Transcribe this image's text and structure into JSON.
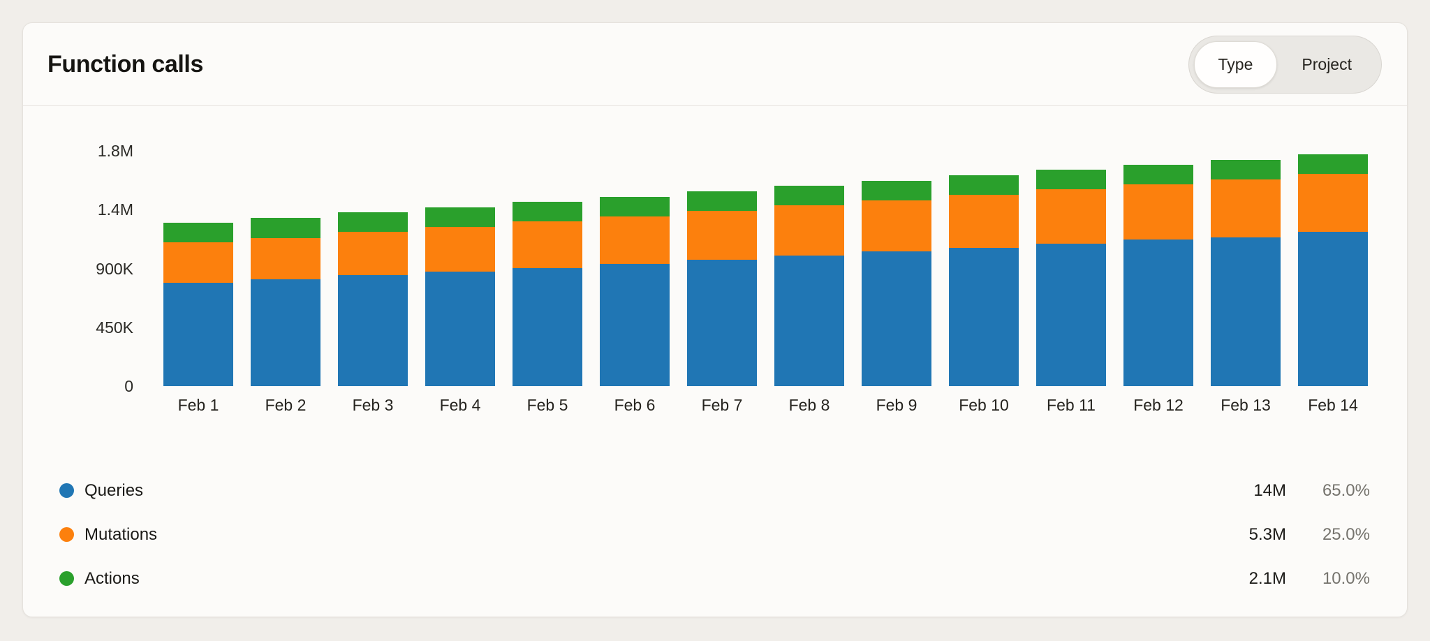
{
  "header": {
    "title": "Function calls"
  },
  "toggle": {
    "options": [
      "Type",
      "Project"
    ],
    "selected": "Type"
  },
  "chart_data": {
    "type": "stacked_bar",
    "title": "Function calls",
    "categories": [
      "Feb 1",
      "Feb 2",
      "Feb 3",
      "Feb 4",
      "Feb 5",
      "Feb 6",
      "Feb 7",
      "Feb 8",
      "Feb 9",
      "Feb 10",
      "Feb 11",
      "Feb 12",
      "Feb 13",
      "Feb 14"
    ],
    "series": [
      {
        "name": "Queries",
        "color": "#2076b4",
        "values": [
          790000,
          815000,
          850000,
          875000,
          905000,
          935000,
          965000,
          1000000,
          1030000,
          1060000,
          1090000,
          1120000,
          1140000,
          1180000
        ]
      },
      {
        "name": "Mutations",
        "color": "#fc800d",
        "values": [
          310000,
          320000,
          330000,
          345000,
          355000,
          365000,
          375000,
          385000,
          390000,
          405000,
          415000,
          425000,
          440000,
          445000
        ]
      },
      {
        "name": "Actions",
        "color": "#2aa02c",
        "values": [
          150000,
          150000,
          150000,
          150000,
          150000,
          150000,
          150000,
          150000,
          150000,
          150000,
          150000,
          150000,
          150000,
          150000
        ]
      }
    ],
    "stack_order": "Queries bottom, Mutations middle, Actions top",
    "xlabel": "",
    "ylabel": "",
    "ylim": [
      0,
      1800000
    ],
    "yticks": [
      {
        "value": 0,
        "label": "0"
      },
      {
        "value": 450000,
        "label": "450K"
      },
      {
        "value": 900000,
        "label": "900K"
      },
      {
        "value": 1350000,
        "label": "1.4M"
      },
      {
        "value": 1800000,
        "label": "1.8M"
      }
    ],
    "grid": false,
    "legend_position": "bottom"
  },
  "legend": {
    "items": [
      {
        "label": "Queries",
        "total": "14M",
        "percent": "65.0%",
        "color": "#2076b4"
      },
      {
        "label": "Mutations",
        "total": "5.3M",
        "percent": "25.0%",
        "color": "#fc800d"
      },
      {
        "label": "Actions",
        "total": "2.1M",
        "percent": "10.0%",
        "color": "#2aa02c"
      }
    ]
  }
}
